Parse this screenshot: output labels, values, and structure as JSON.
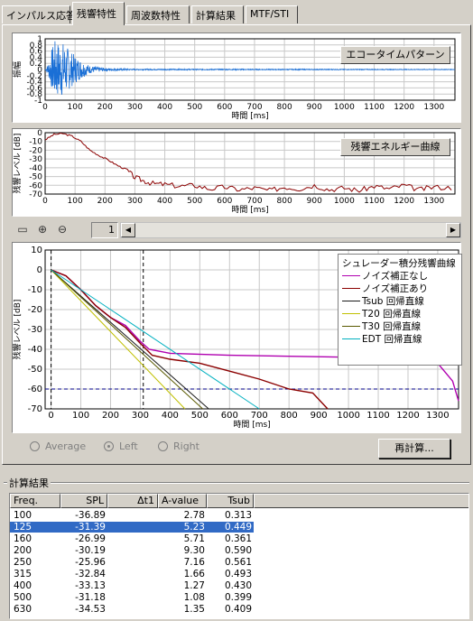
{
  "tabs": [
    {
      "label": "インパルス応答",
      "active": false
    },
    {
      "label": "残響特性",
      "active": true
    },
    {
      "label": "周波数特性",
      "active": false
    },
    {
      "label": "計算結果",
      "active": false
    },
    {
      "label": "MTF/STI",
      "active": false
    }
  ],
  "chart_data": [
    {
      "type": "line",
      "title": "エコータイムパターン",
      "xlabel": "時間 [ms]",
      "ylabel": "振幅",
      "xlim": [
        0,
        1370
      ],
      "ylim": [
        -1,
        1
      ],
      "x_ticks": [
        "0",
        "100",
        "200",
        "300",
        "400",
        "500",
        "600",
        "700",
        "800",
        "900",
        "1000",
        "1100",
        "1200",
        "1300"
      ],
      "y_ticks": [
        "1",
        "0.8",
        "0.6",
        "0.4",
        "0.2",
        "0",
        "-0.2",
        "-0.4",
        "-0.6",
        "-0.8",
        "-1"
      ],
      "series": [
        {
          "color": "#1a6fd6",
          "envelope": [
            [
              0,
              0
            ],
            [
              10,
              0.2
            ],
            [
              30,
              0.95
            ],
            [
              60,
              0.9
            ],
            [
              90,
              0.55
            ],
            [
              120,
              0.3
            ],
            [
              150,
              0.12
            ],
            [
              200,
              0.05
            ],
            [
              300,
              0.02
            ],
            [
              1370,
              0.01
            ]
          ]
        }
      ]
    },
    {
      "type": "line",
      "title": "残響エネルギー曲線",
      "xlabel": "時間 [ms]",
      "ylabel": "残響レベル [dB]",
      "xlim": [
        0,
        1370
      ],
      "ylim": [
        -70,
        0
      ],
      "x_ticks": [
        "0",
        "100",
        "200",
        "300",
        "400",
        "500",
        "600",
        "700",
        "800",
        "900",
        "1000",
        "1100",
        "1200",
        "1300"
      ],
      "y_ticks": [
        "0",
        "-10",
        "-20",
        "-30",
        "-40",
        "-50",
        "-60",
        "-70"
      ],
      "series": [
        {
          "color": "#8b0000",
          "points": [
            [
              0,
              -8
            ],
            [
              30,
              -2
            ],
            [
              60,
              -1
            ],
            [
              90,
              -4
            ],
            [
              120,
              -10
            ],
            [
              150,
              -20
            ],
            [
              180,
              -26
            ],
            [
              210,
              -31
            ],
            [
              240,
              -37
            ],
            [
              270,
              -42
            ],
            [
              300,
              -51
            ],
            [
              330,
              -55
            ],
            [
              360,
              -58
            ],
            [
              400,
              -59
            ],
            [
              450,
              -61
            ],
            [
              500,
              -60
            ],
            [
              550,
              -64
            ],
            [
              600,
              -62
            ],
            [
              650,
              -65
            ],
            [
              700,
              -63
            ],
            [
              750,
              -66
            ],
            [
              800,
              -62
            ],
            [
              850,
              -64
            ],
            [
              900,
              -60
            ],
            [
              950,
              -65
            ],
            [
              1000,
              -63
            ],
            [
              1050,
              -66
            ],
            [
              1100,
              -61
            ],
            [
              1150,
              -64
            ],
            [
              1200,
              -60
            ],
            [
              1250,
              -65
            ],
            [
              1300,
              -62
            ],
            [
              1370,
              -63
            ]
          ]
        }
      ]
    },
    {
      "type": "line",
      "title": "",
      "xlabel": "時間 [ms]",
      "ylabel": "残響レベル [dB]",
      "xlim": [
        -20,
        1370
      ],
      "ylim": [
        -70,
        10
      ],
      "x_ticks": [
        "0",
        "100",
        "200",
        "300",
        "400",
        "500",
        "600",
        "700",
        "800",
        "900",
        "1000",
        "1100",
        "1200",
        "1300"
      ],
      "y_ticks": [
        "10",
        "0",
        "-10",
        "-20",
        "-30",
        "-40",
        "-50",
        "-60",
        "-70"
      ],
      "legend_title": "シュレーダー積分残響曲線",
      "legend_position": "top-right",
      "hline": -60,
      "vlines": [
        0,
        310
      ],
      "series": [
        {
          "name": "ノイズ補正なし",
          "color": "#b000b0",
          "points": [
            [
              0,
              0
            ],
            [
              50,
              -3
            ],
            [
              100,
              -10
            ],
            [
              150,
              -18
            ],
            [
              200,
              -24
            ],
            [
              250,
              -28
            ],
            [
              300,
              -36
            ],
            [
              330,
              -40
            ],
            [
              400,
              -42
            ],
            [
              600,
              -43
            ],
            [
              800,
              -43.5
            ],
            [
              1000,
              -44
            ],
            [
              1200,
              -45
            ],
            [
              1300,
              -47
            ],
            [
              1350,
              -56
            ],
            [
              1370,
              -66
            ]
          ]
        },
        {
          "name": "ノイズ補正あり",
          "color": "#8b0000",
          "points": [
            [
              0,
              0
            ],
            [
              50,
              -3
            ],
            [
              100,
              -10
            ],
            [
              150,
              -18
            ],
            [
              200,
              -24
            ],
            [
              250,
              -29
            ],
            [
              300,
              -37
            ],
            [
              340,
              -43
            ],
            [
              400,
              -45
            ],
            [
              500,
              -47
            ],
            [
              600,
              -51
            ],
            [
              700,
              -55
            ],
            [
              800,
              -60
            ],
            [
              880,
              -62
            ],
            [
              930,
              -70
            ]
          ]
        },
        {
          "name": "Tsub 回帰直線",
          "color": "#1a1a1a",
          "points": [
            [
              0,
              0
            ],
            [
              530,
              -70
            ]
          ]
        },
        {
          "name": "T20 回帰直線",
          "color": "#c0c000",
          "points": [
            [
              0,
              0
            ],
            [
              450,
              -70
            ]
          ]
        },
        {
          "name": "T30 回帰直線",
          "color": "#5a5a00",
          "points": [
            [
              0,
              0
            ],
            [
              510,
              -70
            ]
          ]
        },
        {
          "name": "EDT 回帰直線",
          "color": "#00b0c0",
          "points": [
            [
              0,
              0
            ],
            [
              700,
              -70
            ]
          ]
        }
      ]
    }
  ],
  "toolbar": {
    "page": "1"
  },
  "radios": [
    {
      "label": "Average",
      "checked": false
    },
    {
      "label": "Left",
      "checked": true
    },
    {
      "label": "Right",
      "checked": false
    }
  ],
  "recalc_label": "再計算...",
  "results": {
    "title": "計算結果",
    "columns": [
      "Freq.",
      "SPL",
      "Δt1",
      "A-value",
      "Tsub"
    ],
    "rows": [
      [
        "100",
        "-36.89",
        "",
        "2.78",
        "0.313"
      ],
      [
        "125",
        "-31.39",
        "",
        "5.23",
        "0.449"
      ],
      [
        "160",
        "-26.99",
        "",
        "5.71",
        "0.361"
      ],
      [
        "200",
        "-30.19",
        "",
        "9.30",
        "0.590"
      ],
      [
        "250",
        "-25.96",
        "",
        "7.16",
        "0.561"
      ],
      [
        "315",
        "-32.84",
        "",
        "1.66",
        "0.493"
      ],
      [
        "400",
        "-33.13",
        "",
        "1.27",
        "0.430"
      ],
      [
        "500",
        "-31.18",
        "",
        "1.08",
        "0.399"
      ],
      [
        "630",
        "-34.53",
        "",
        "1.35",
        "0.409"
      ]
    ],
    "selected_row": 1
  }
}
